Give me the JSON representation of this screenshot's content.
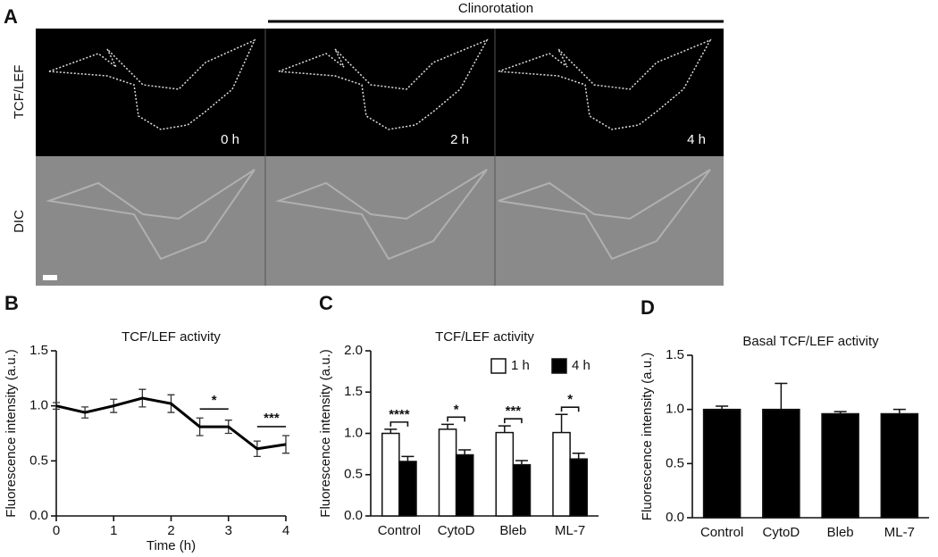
{
  "panel_a": {
    "label": "A",
    "header": "Clinorotation",
    "row_labels": [
      "TCF/LEF",
      "DIC"
    ],
    "time_labels": [
      "0 h",
      "2 h",
      "4 h"
    ]
  },
  "chart_data": [
    {
      "type": "line",
      "panel": "B",
      "title": "TCF/LEF activity",
      "xlabel": "Time (h)",
      "ylabel": "Fluorescence intensity (a.u.)",
      "x": [
        0,
        0.5,
        1,
        1.5,
        2,
        2.5,
        3,
        3.5,
        4
      ],
      "values": [
        1.0,
        0.94,
        1.0,
        1.07,
        1.02,
        0.81,
        0.81,
        0.61,
        0.65
      ],
      "errors": [
        0.03,
        0.05,
        0.06,
        0.08,
        0.08,
        0.08,
        0.06,
        0.07,
        0.08
      ],
      "color": "#000000",
      "xlim": [
        0,
        4
      ],
      "xticks": [
        0,
        1,
        2,
        3,
        4
      ],
      "ylim": [
        0,
        1.5
      ],
      "yticks": [
        {
          "value": 0,
          "label": "0.0"
        },
        {
          "value": 0.5,
          "label": "0.5"
        },
        {
          "value": 1,
          "label": "1.0"
        },
        {
          "value": 1.5,
          "label": "1.5"
        }
      ],
      "annotations": [
        {
          "text": "*",
          "x": [
            2.5,
            3
          ]
        },
        {
          "text": "***",
          "x": [
            3.5,
            4
          ]
        }
      ]
    },
    {
      "type": "bar",
      "panel": "C",
      "title": "TCF/LEF activity",
      "ylabel": "Fluorescence intensity (a.u.)",
      "categories": [
        "Control",
        "CytoD",
        "Bleb",
        "ML-7"
      ],
      "series": [
        {
          "name": "1 h",
          "color": "#ffffff",
          "values": [
            1.0,
            1.05,
            1.01,
            1.01
          ],
          "errors": [
            0.05,
            0.06,
            0.08,
            0.22
          ]
        },
        {
          "name": "4 h",
          "color": "#000000",
          "values": [
            0.66,
            0.74,
            0.62,
            0.69
          ],
          "errors": [
            0.06,
            0.06,
            0.05,
            0.07
          ]
        }
      ],
      "significance": [
        "****",
        "*",
        "***",
        "*"
      ],
      "ylim": [
        0,
        2
      ],
      "yticks": [
        {
          "value": 0,
          "label": "0.0"
        },
        {
          "value": 0.5,
          "label": "0.5"
        },
        {
          "value": 1,
          "label": "1.0"
        },
        {
          "value": 1.5,
          "label": "1.5"
        },
        {
          "value": 2,
          "label": "2.0"
        }
      ]
    },
    {
      "type": "bar",
      "panel": "D",
      "title": "Basal TCF/LEF activity",
      "ylabel": "Fluorescence intensity (a.u.)",
      "categories": [
        "Control",
        "CytoD",
        "Bleb",
        "ML-7"
      ],
      "values": [
        1.0,
        1.0,
        0.96,
        0.96
      ],
      "errors": [
        0.03,
        0.24,
        0.02,
        0.04
      ],
      "color": "#000000",
      "ylim": [
        0,
        1.5
      ],
      "yticks": [
        {
          "value": 0,
          "label": "0.0"
        },
        {
          "value": 0.5,
          "label": "0.5"
        },
        {
          "value": 1,
          "label": "1.0"
        },
        {
          "value": 1.5,
          "label": "1.5"
        }
      ]
    }
  ]
}
